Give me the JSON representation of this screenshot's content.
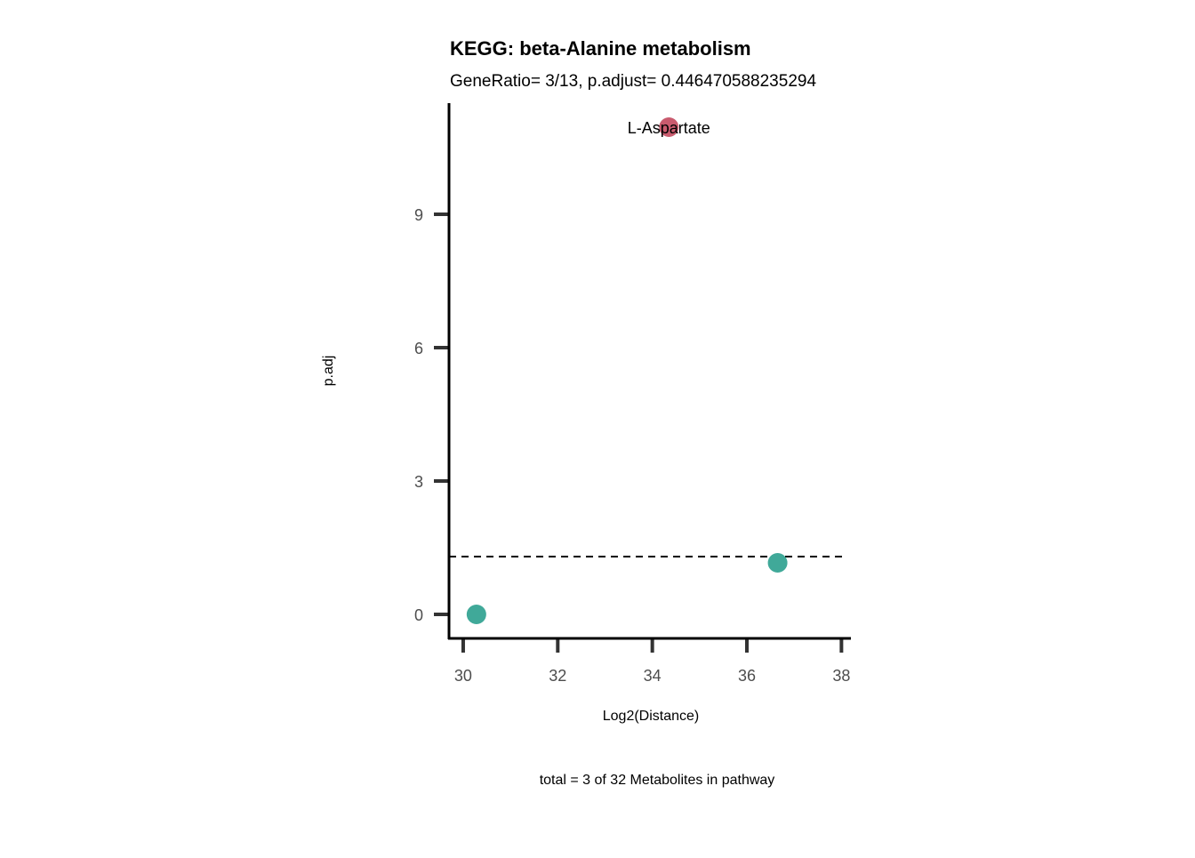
{
  "chart_data": {
    "type": "scatter",
    "title": "KEGG: beta-Alanine metabolism",
    "subtitle": "GeneRatio= 3/13, p.adjust= 0.446470588235294",
    "xlabel": "Log2(Distance)",
    "ylabel": "p.adj",
    "caption": "total = 3 of 32 Metabolites in pathway",
    "xlim": [
      29.7,
      38.2
    ],
    "ylim": [
      -0.54,
      11.5
    ],
    "xticks": [
      30,
      32,
      34,
      36,
      38
    ],
    "yticks": [
      0,
      3,
      6,
      9
    ],
    "threshold": 1.3,
    "points": [
      {
        "x": 30.28,
        "y": 0.0,
        "label": "",
        "color": "#40A999"
      },
      {
        "x": 36.65,
        "y": 1.16,
        "label": "",
        "color": "#40A999"
      },
      {
        "x": 34.35,
        "y": 10.96,
        "label": "L-Aspartate",
        "color": "#C95B6E"
      }
    ],
    "grid": false
  }
}
